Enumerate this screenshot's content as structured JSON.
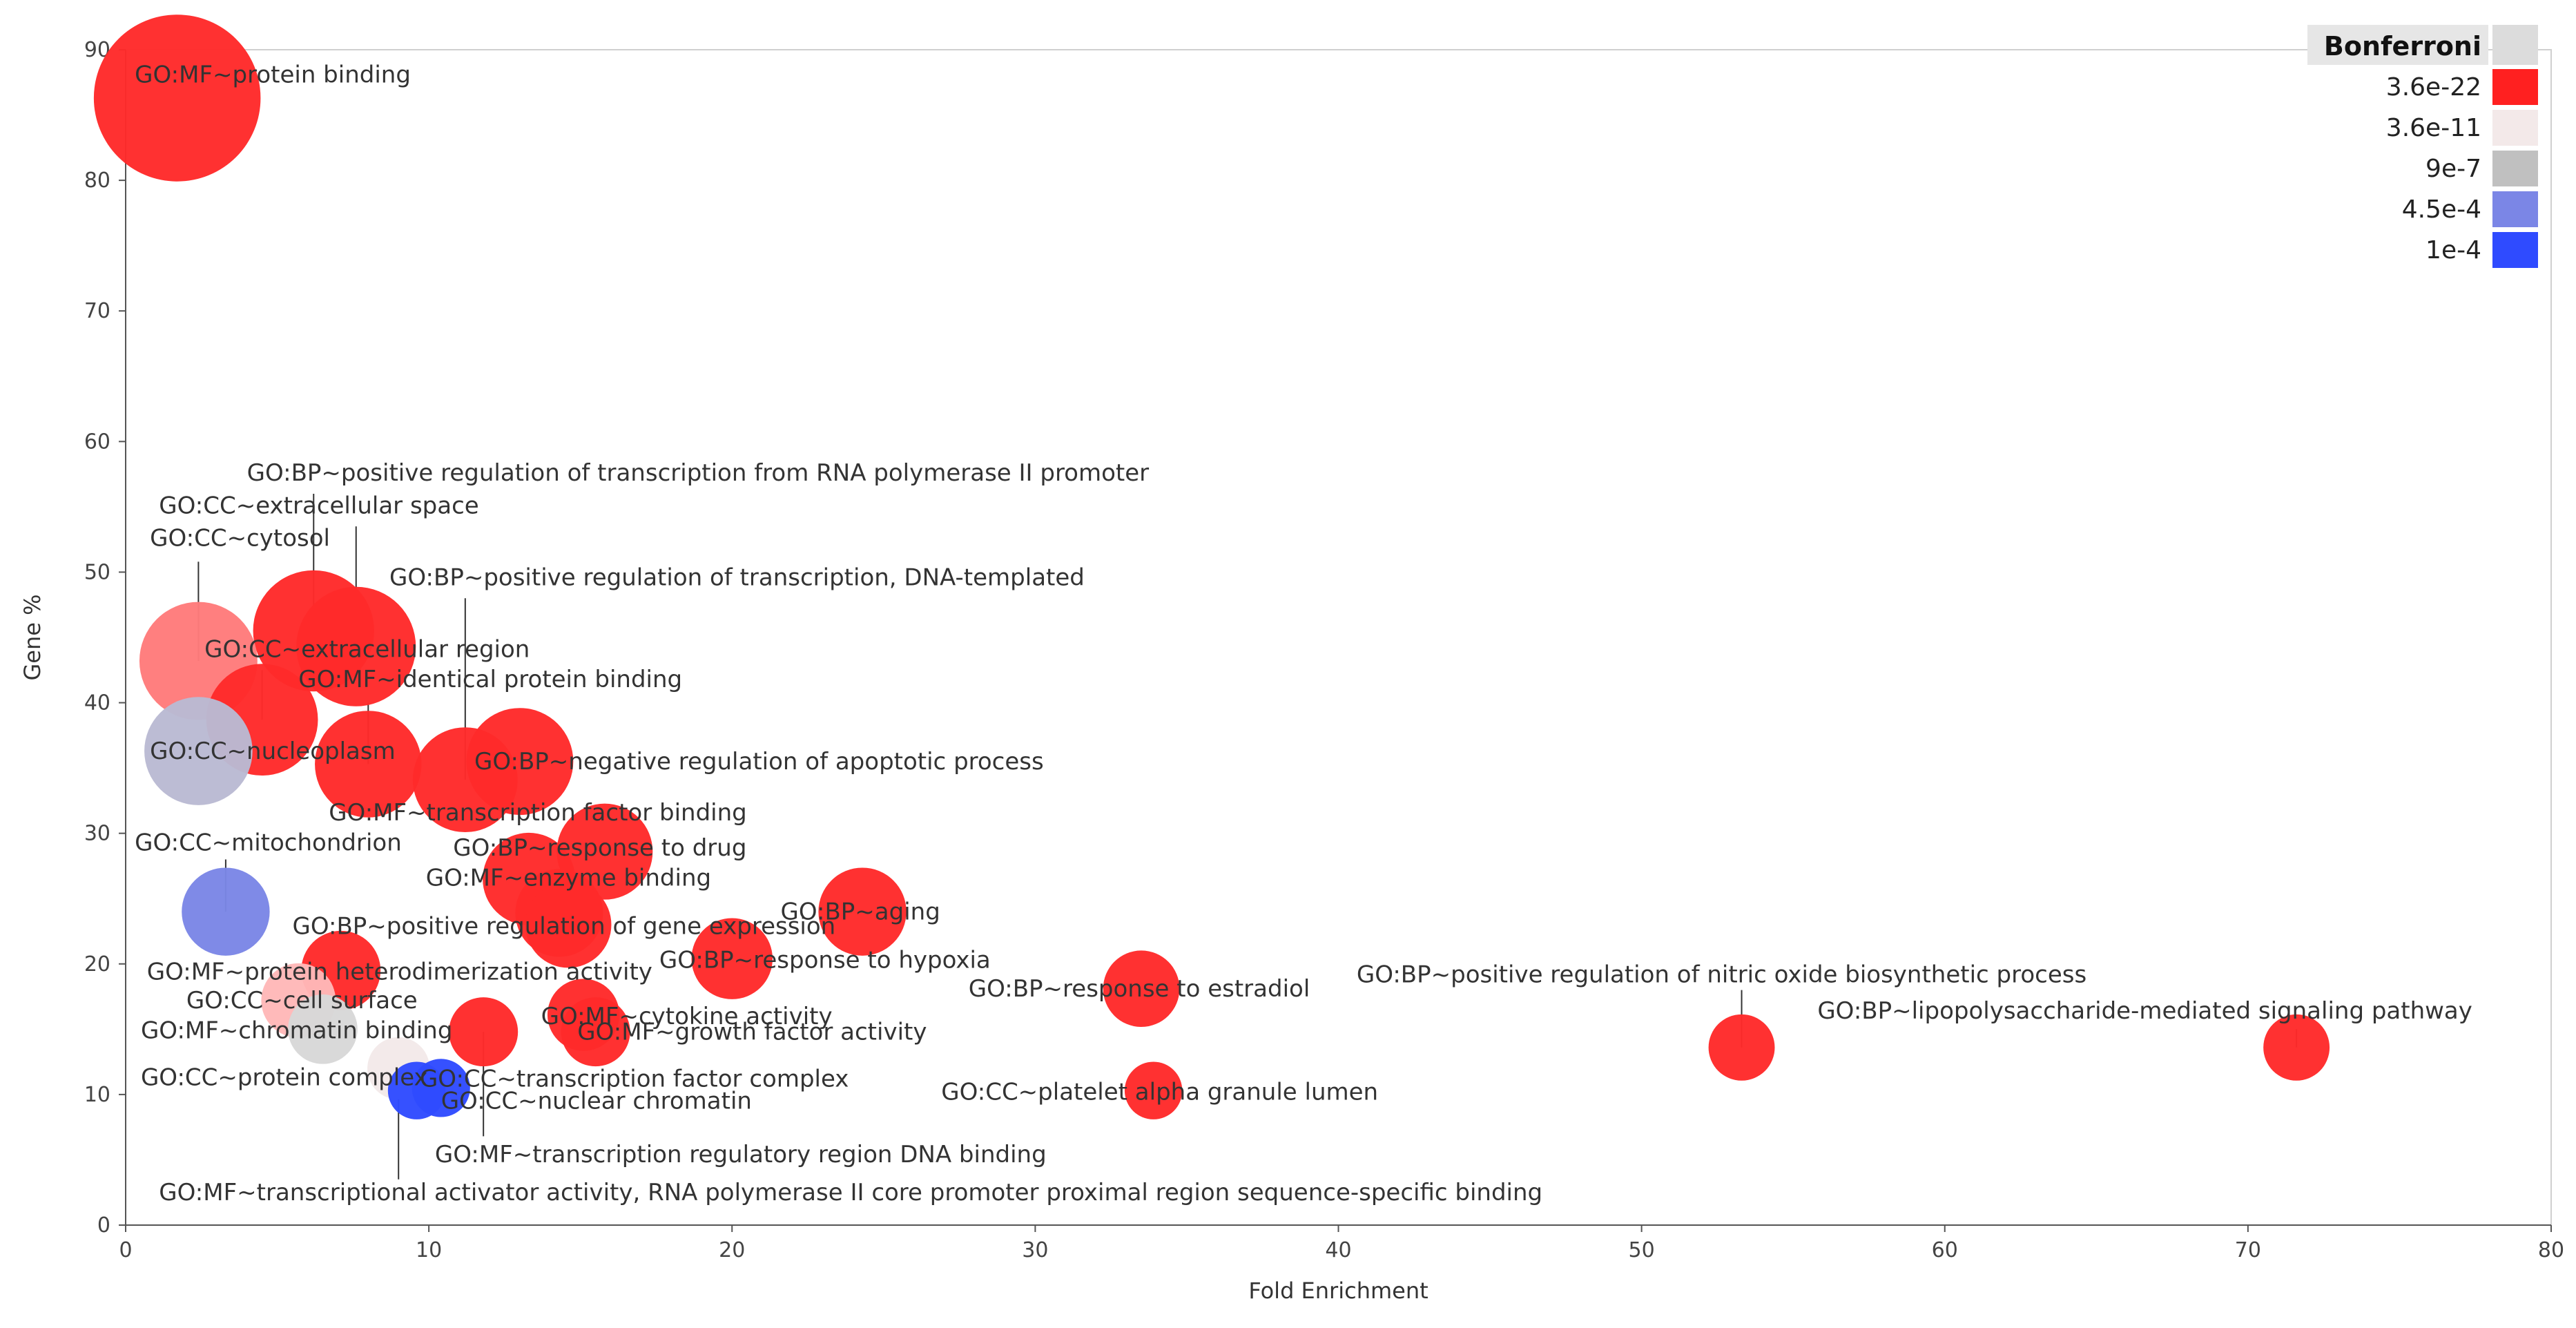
{
  "chart_data": {
    "type": "scatter",
    "title": "",
    "xlabel": "Fold Enrichment",
    "ylabel": "Gene %",
    "xlim": [
      0,
      80
    ],
    "ylim": [
      0,
      90
    ],
    "xticks": [
      0,
      10,
      20,
      30,
      40,
      50,
      60,
      70,
      80
    ],
    "yticks": [
      0,
      10,
      20,
      30,
      40,
      50,
      60,
      70,
      80,
      90
    ],
    "legend": {
      "title": "Bonferroni",
      "placement": "top-right",
      "items": [
        {
          "label": "3.6e-22",
          "color": "#ff2020"
        },
        {
          "label": "3.6e-11",
          "color": "#f3e9e9"
        },
        {
          "label": "9e-7",
          "color": "#c0c0c0"
        },
        {
          "label": "4.5e-4",
          "color": "#7b86e6"
        },
        {
          "label": "1e-4",
          "color": "#2f4bff"
        }
      ]
    },
    "points": [
      {
        "label": "GO:MF~protein binding",
        "x": 1.7,
        "y": 86.3,
        "size": 86.3,
        "color": "#ff2a2a",
        "lx": 0.3,
        "ly": 87.5,
        "anchor": "start",
        "leader": false
      },
      {
        "label": "GO:BP~positive regulation of transcription from RNA polymerase II promoter",
        "x": 6.2,
        "y": 45.5,
        "size": 45.5,
        "color": "#ff2a2a",
        "lx": 4,
        "ly": 57.0,
        "anchor": "start",
        "leader": true,
        "lead_x": 6.2,
        "lead_y": 56.0
      },
      {
        "label": "GO:CC~extracellular space",
        "x": 7.6,
        "y": 44.3,
        "size": 44.3,
        "color": "#ff2a2a",
        "lx": 1.1,
        "ly": 54.5,
        "anchor": "start",
        "leader": true,
        "lead_x": 7.6,
        "lead_y": 53.5
      },
      {
        "label": "GO:CC~cytosol",
        "x": 2.4,
        "y": 43.2,
        "size": 43.2,
        "color": "#ff7b7b",
        "lx": 0.8,
        "ly": 52.0,
        "anchor": "start",
        "leader": true,
        "lead_x": 2.4,
        "lead_y": 50.8
      },
      {
        "label": "GO:BP~positive regulation of transcription, DNA-templated",
        "x": 11.2,
        "y": 34.1,
        "size": 34.1,
        "color": "#ff2a2a",
        "lx": 8.7,
        "ly": 49.0,
        "anchor": "start",
        "leader": true,
        "lead_x": 11.2,
        "lead_y": 48.0
      },
      {
        "label": "GO:CC~extracellular region",
        "x": 4.5,
        "y": 38.7,
        "size": 38.7,
        "color": "#ff2a2a",
        "lx": 2.6,
        "ly": 43.5,
        "anchor": "start",
        "leader": true,
        "lead_x": 4.5,
        "lead_y": 42.5
      },
      {
        "label": "GO:MF~identical protein binding",
        "x": 8.0,
        "y": 35.3,
        "size": 35.3,
        "color": "#ff2a2a",
        "lx": 5.7,
        "ly": 41.2,
        "anchor": "start",
        "leader": true,
        "lead_x": 8.0,
        "lead_y": 40.0
      },
      {
        "label": "GO:CC~nucleoplasm",
        "x": 2.4,
        "y": 36.3,
        "size": 36.3,
        "color": "#babad3",
        "lx": 0.8,
        "ly": 35.7,
        "anchor": "start",
        "leader": false
      },
      {
        "label": "GO:BP~negative regulation of apoptotic process",
        "x": 13.0,
        "y": 35.5,
        "size": 35.5,
        "color": "#ff2a2a",
        "lx": 11.5,
        "ly": 34.9,
        "anchor": "start",
        "leader": false
      },
      {
        "label": "GO:MF~transcription factor binding",
        "x": 15.8,
        "y": 28.6,
        "size": 28.6,
        "color": "#ff2a2a",
        "lx": 6.7,
        "ly": 31.0,
        "anchor": "start",
        "leader": false
      },
      {
        "label": "GO:BP~response to drug",
        "x": 13.3,
        "y": 26.5,
        "size": 26.5,
        "color": "#ff2a2a",
        "lx": 10.8,
        "ly": 28.3,
        "anchor": "start",
        "leader": false
      },
      {
        "label": "GO:CC~mitochondrion",
        "x": 3.3,
        "y": 24.0,
        "size": 24.0,
        "color": "#7b86e6",
        "lx": 0.3,
        "ly": 28.7,
        "anchor": "start",
        "leader": true,
        "lead_x": 3.3,
        "lead_y": 28.0
      },
      {
        "label": "GO:MF~enzyme binding",
        "x": 14.3,
        "y": 23.9,
        "size": 23.9,
        "color": "#ff2a2a",
        "lx": 9.9,
        "ly": 26.0,
        "anchor": "start",
        "leader": false
      },
      {
        "label": "GO:BP~aging",
        "x": 24.3,
        "y": 24.0,
        "size": 24.0,
        "color": "#ff2a2a",
        "lx": 21.6,
        "ly": 23.4,
        "anchor": "start",
        "leader": false
      },
      {
        "label": "GO:BP~positive regulation of gene expression",
        "x": 14.6,
        "y": 23.0,
        "size": 23.0,
        "color": "#ff2a2a",
        "lx": 5.5,
        "ly": 22.3,
        "anchor": "start",
        "leader": false
      },
      {
        "label": "GO:BP~response to hypoxia",
        "x": 20.0,
        "y": 20.4,
        "size": 20.4,
        "color": "#ff2a2a",
        "lx": 17.6,
        "ly": 19.7,
        "anchor": "start",
        "leader": false
      },
      {
        "label": "GO:MF~protein heterodimerization activity",
        "x": 7.1,
        "y": 19.5,
        "size": 19.5,
        "color": "#ff2a2a",
        "lx": 0.7,
        "ly": 18.8,
        "anchor": "start",
        "leader": false
      },
      {
        "label": "GO:BP~positive regulation of nitric oxide biosynthetic process",
        "x": 53.3,
        "y": 13.6,
        "size": 13.6,
        "color": "#ff2a2a",
        "lx": 40.6,
        "ly": 18.6,
        "anchor": "start",
        "leader": true,
        "lead_x": 53.3,
        "lead_y": 18.0
      },
      {
        "label": "GO:BP~response to estradiol",
        "x": 33.5,
        "y": 18.1,
        "size": 18.1,
        "color": "#ff2a2a",
        "lx": 27.8,
        "ly": 17.5,
        "anchor": "start",
        "leader": false
      },
      {
        "label": "GO:CC~cell surface",
        "x": 5.7,
        "y": 17.2,
        "size": 17.2,
        "color": "#ffb8b8",
        "lx": 2.0,
        "ly": 16.6,
        "anchor": "start",
        "leader": false
      },
      {
        "label": "GO:BP~lipopolysaccharide-mediated signaling pathway",
        "x": 71.6,
        "y": 13.6,
        "size": 13.6,
        "color": "#ff2a2a",
        "lx": 55.8,
        "ly": 15.8,
        "anchor": "start",
        "leader": true,
        "lead_x": 71.6,
        "lead_y": 15.0
      },
      {
        "label": "GO:MF~cytokine activity",
        "x": 15.1,
        "y": 16.1,
        "size": 16.1,
        "color": "#ff2a2a",
        "lx": 13.7,
        "ly": 15.4,
        "anchor": "start",
        "leader": false
      },
      {
        "label": "GO:MF~chromatin binding",
        "x": 6.5,
        "y": 15.0,
        "size": 15.0,
        "color": "#d8d8d8",
        "lx": 0.5,
        "ly": 14.3,
        "anchor": "start",
        "leader": false
      },
      {
        "label": "GO:MF~growth factor activity",
        "x": 15.5,
        "y": 14.8,
        "size": 14.8,
        "color": "#ff2a2a",
        "lx": 14.9,
        "ly": 14.2,
        "anchor": "start",
        "leader": false
      },
      {
        "label": "GO:MF~transcription regulatory region DNA binding",
        "x": 11.8,
        "y": 14.8,
        "size": 14.8,
        "color": "#ff2a2a",
        "lx": 10.2,
        "ly": 4.8,
        "anchor": "start",
        "leader": true,
        "lead_x": 11.8,
        "lead_y": 6.8
      },
      {
        "label": "GO:CC~protein complex",
        "x": 9.0,
        "y": 12.0,
        "size": 12.0,
        "color": "#f3e9e9",
        "lx": 0.5,
        "ly": 10.7,
        "anchor": "start",
        "leader": false
      },
      {
        "label": "GO:CC~transcription factor complex",
        "x": 9.6,
        "y": 10.3,
        "size": 10.3,
        "color": "#2f4bff",
        "lx": 9.7,
        "ly": 10.6,
        "anchor": "start",
        "leader": false
      },
      {
        "label": "GO:CC~nuclear chromatin",
        "x": 10.4,
        "y": 10.5,
        "size": 10.5,
        "color": "#2f4bff",
        "lx": 10.4,
        "ly": 8.9,
        "anchor": "start",
        "leader": false
      },
      {
        "label": "GO:CC~platelet alpha granule lumen",
        "x": 33.9,
        "y": 10.3,
        "size": 10.3,
        "color": "#ff2a2a",
        "lx": 26.9,
        "ly": 9.6,
        "anchor": "start",
        "leader": false
      },
      {
        "label": "GO:MF~transcriptional activator activity, RNA polymerase II core promoter proximal region sequence-specific binding",
        "x": 9.0,
        "y": 12.0,
        "size": 12.0,
        "color": "#f3e9e9",
        "lx": 1.1,
        "ly": 1.9,
        "anchor": "start",
        "leader": true,
        "lead_x": 9.0,
        "lead_y": 3.5
      }
    ]
  }
}
